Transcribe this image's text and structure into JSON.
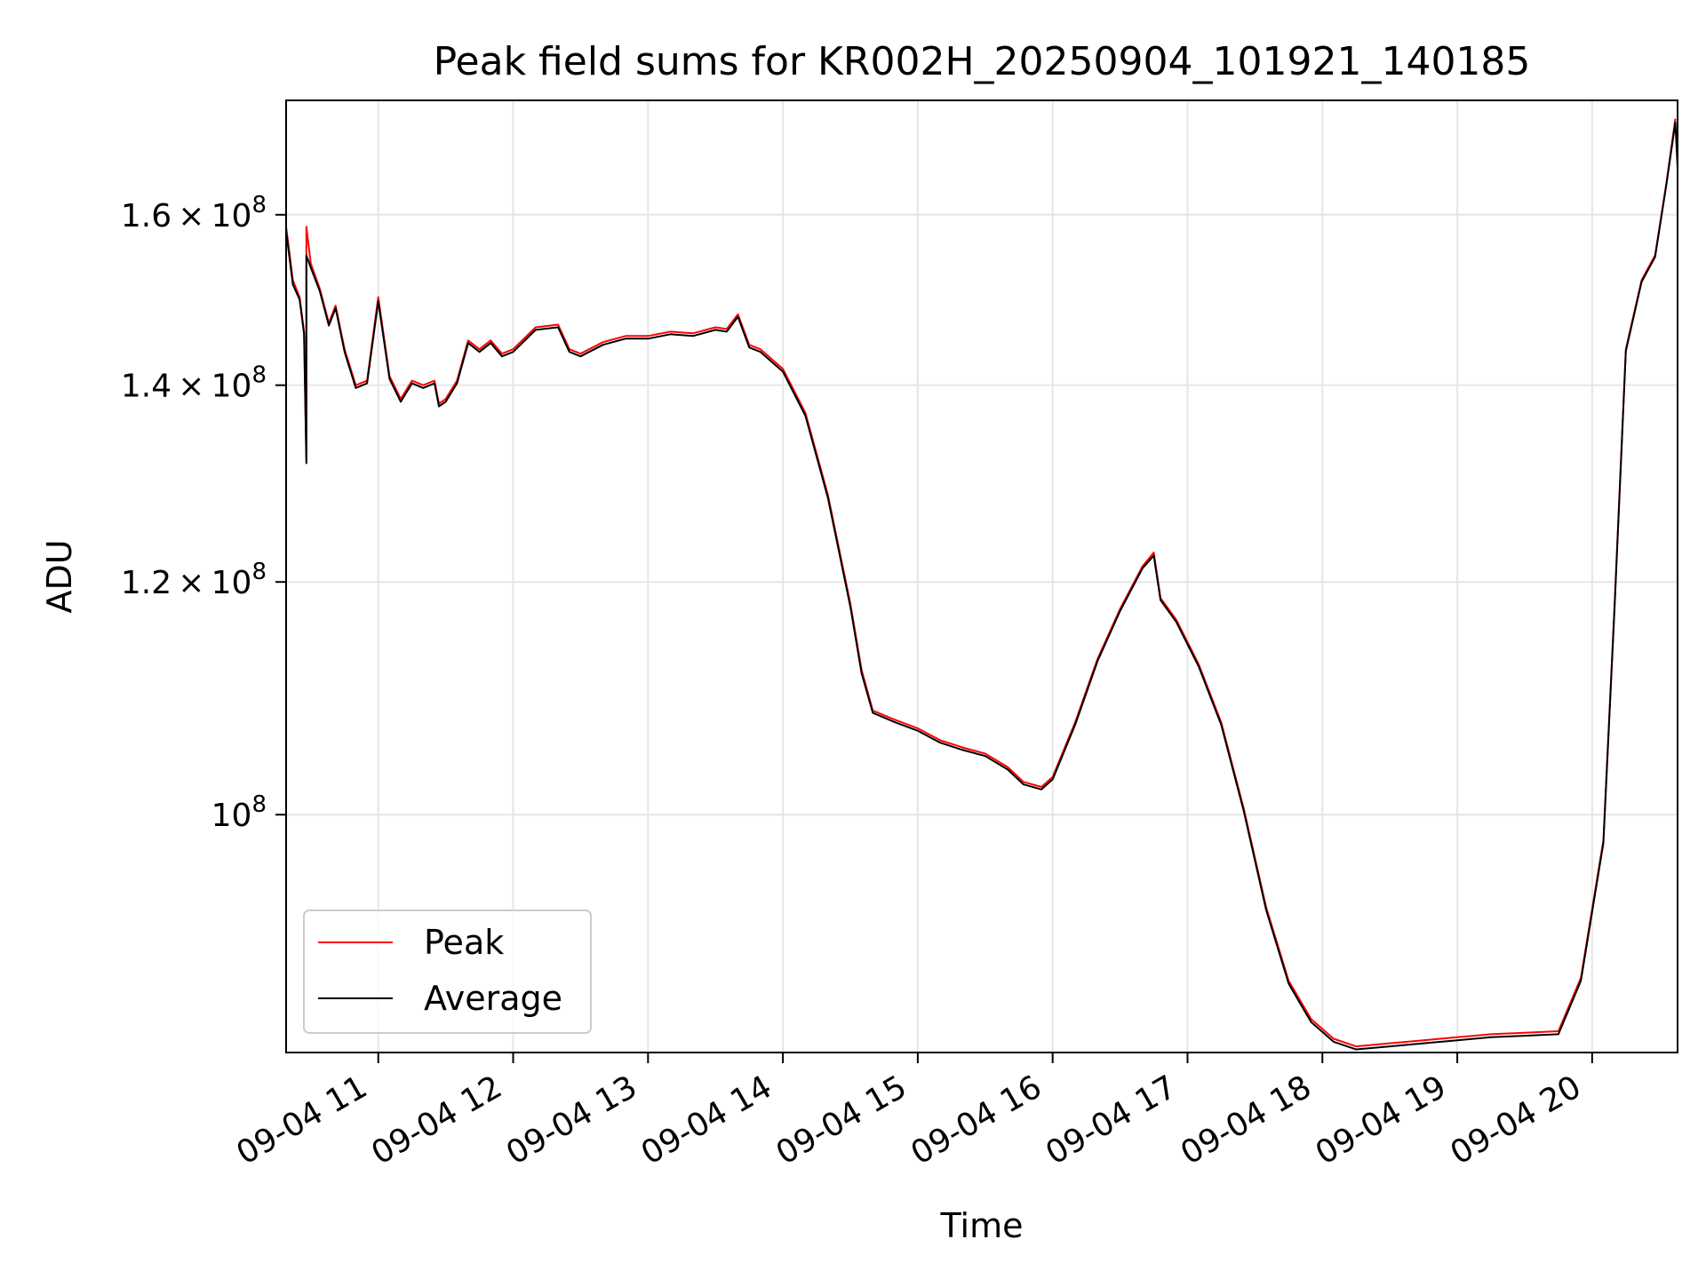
{
  "chart_data": {
    "type": "line",
    "title": "Peak field sums for KR002H_20250904_101921_140185",
    "xlabel": "Time",
    "ylabel": "ADU",
    "y_scale": "log",
    "grid": true,
    "legend_position": "lower-left",
    "x_tick_labels": [
      "09-04 11",
      "09-04 12",
      "09-04 13",
      "09-04 14",
      "09-04 15",
      "09-04 16",
      "09-04 17",
      "09-04 18",
      "09-04 19",
      "09-04 20"
    ],
    "y_ticks": [
      {
        "value": 160000000,
        "mantissa": "1.6",
        "times": "×",
        "base": "10",
        "exp": "8"
      },
      {
        "value": 140000000,
        "mantissa": "1.4",
        "times": "×",
        "base": "10",
        "exp": "8"
      },
      {
        "value": 120000000,
        "mantissa": "1.2",
        "times": "×",
        "base": "10",
        "exp": "8"
      },
      {
        "value": 100000000,
        "mantissa": "",
        "times": "",
        "base": "10",
        "exp": "8"
      }
    ],
    "xlim": [
      "09-04 10:19",
      "09-04 20:38"
    ],
    "ylim": [
      83000000,
      175000000
    ],
    "series": [
      {
        "name": "Peak",
        "color": "#ff0000",
        "points": [
          [
            "09-04 10:19",
            158500000
          ],
          [
            "09-04 10:22",
            152000000
          ],
          [
            "09-04 10:25",
            150000000
          ],
          [
            "09-04 10:27",
            146000000
          ],
          [
            "09-04 10:28",
            132000000
          ],
          [
            "09-04 10:28",
            158500000
          ],
          [
            "09-04 10:30",
            154000000
          ],
          [
            "09-04 10:34",
            151000000
          ],
          [
            "09-04 10:38",
            147000000
          ],
          [
            "09-04 10:41",
            149000000
          ],
          [
            "09-04 10:45",
            144000000
          ],
          [
            "09-04 10:50",
            140000000
          ],
          [
            "09-04 10:55",
            140500000
          ],
          [
            "09-04 11:00",
            150000000
          ],
          [
            "09-04 11:05",
            141000000
          ],
          [
            "09-04 11:10",
            138500000
          ],
          [
            "09-04 11:15",
            140500000
          ],
          [
            "09-04 11:20",
            140000000
          ],
          [
            "09-04 11:25",
            140500000
          ],
          [
            "09-04 11:27",
            138000000
          ],
          [
            "09-04 11:30",
            138500000
          ],
          [
            "09-04 11:35",
            140500000
          ],
          [
            "09-04 11:40",
            145000000
          ],
          [
            "09-04 11:45",
            144000000
          ],
          [
            "09-04 11:50",
            145000000
          ],
          [
            "09-04 11:55",
            143500000
          ],
          [
            "09-04 12:00",
            144000000
          ],
          [
            "09-04 12:10",
            146500000
          ],
          [
            "09-04 12:20",
            146800000
          ],
          [
            "09-04 12:25",
            144000000
          ],
          [
            "09-04 12:30",
            143500000
          ],
          [
            "09-04 12:40",
            144800000
          ],
          [
            "09-04 12:50",
            145500000
          ],
          [
            "09-04 13:00",
            145500000
          ],
          [
            "09-04 13:10",
            146000000
          ],
          [
            "09-04 13:20",
            145800000
          ],
          [
            "09-04 13:30",
            146500000
          ],
          [
            "09-04 13:35",
            146300000
          ],
          [
            "09-04 13:40",
            148000000
          ],
          [
            "09-04 13:45",
            144500000
          ],
          [
            "09-04 13:50",
            144000000
          ],
          [
            "09-04 14:00",
            141800000
          ],
          [
            "09-04 14:10",
            137000000
          ],
          [
            "09-04 14:20",
            128500000
          ],
          [
            "09-04 14:30",
            118000000
          ],
          [
            "09-04 14:35",
            112000000
          ],
          [
            "09-04 14:40",
            108500000
          ],
          [
            "09-04 14:50",
            107700000
          ],
          [
            "09-04 15:00",
            107000000
          ],
          [
            "09-04 15:10",
            106000000
          ],
          [
            "09-04 15:20",
            105400000
          ],
          [
            "09-04 15:30",
            104900000
          ],
          [
            "09-04 15:40",
            103800000
          ],
          [
            "09-04 15:47",
            102600000
          ],
          [
            "09-04 15:55",
            102200000
          ],
          [
            "09-04 16:00",
            103000000
          ],
          [
            "09-04 16:10",
            107500000
          ],
          [
            "09-04 16:20",
            113000000
          ],
          [
            "09-04 16:30",
            117500000
          ],
          [
            "09-04 16:40",
            121500000
          ],
          [
            "09-04 16:45",
            122800000
          ],
          [
            "09-04 16:48",
            118500000
          ],
          [
            "09-04 16:55",
            116500000
          ],
          [
            "09-04 17:05",
            112500000
          ],
          [
            "09-04 17:15",
            107500000
          ],
          [
            "09-04 17:25",
            100500000
          ],
          [
            "09-04 17:35",
            93000000
          ],
          [
            "09-04 17:45",
            87800000
          ],
          [
            "09-04 17:55",
            85200000
          ],
          [
            "09-04 18:05",
            83900000
          ],
          [
            "09-04 18:15",
            83400000
          ],
          [
            "09-04 18:30",
            83600000
          ],
          [
            "09-04 18:45",
            83800000
          ],
          [
            "09-04 19:00",
            84000000
          ],
          [
            "09-04 19:15",
            84200000
          ],
          [
            "09-04 19:30",
            84300000
          ],
          [
            "09-04 19:45",
            84400000
          ],
          [
            "09-04 19:55",
            88000000
          ],
          [
            "09-04 20:05",
            98000000
          ],
          [
            "09-04 20:10",
            118000000
          ],
          [
            "09-04 20:15",
            144000000
          ],
          [
            "09-04 20:22",
            152000000
          ],
          [
            "09-04 20:28",
            155000000
          ],
          [
            "09-04 20:33",
            164000000
          ],
          [
            "09-04 20:37",
            172500000
          ]
        ]
      },
      {
        "name": "Average",
        "color": "#000000",
        "points": [
          [
            "09-04 10:19",
            158000000
          ],
          [
            "09-04 10:22",
            151500000
          ],
          [
            "09-04 10:25",
            149700000
          ],
          [
            "09-04 10:27",
            145700000
          ],
          [
            "09-04 10:28",
            131700000
          ],
          [
            "09-04 10:28",
            155000000
          ],
          [
            "09-04 10:30",
            153500000
          ],
          [
            "09-04 10:34",
            150700000
          ],
          [
            "09-04 10:38",
            146700000
          ],
          [
            "09-04 10:41",
            148700000
          ],
          [
            "09-04 10:45",
            143700000
          ],
          [
            "09-04 10:50",
            139700000
          ],
          [
            "09-04 10:55",
            140200000
          ],
          [
            "09-04 11:00",
            149500000
          ],
          [
            "09-04 11:05",
            140700000
          ],
          [
            "09-04 11:10",
            138200000
          ],
          [
            "09-04 11:15",
            140200000
          ],
          [
            "09-04 11:20",
            139700000
          ],
          [
            "09-04 11:25",
            140200000
          ],
          [
            "09-04 11:27",
            137700000
          ],
          [
            "09-04 11:30",
            138200000
          ],
          [
            "09-04 11:35",
            140200000
          ],
          [
            "09-04 11:40",
            144700000
          ],
          [
            "09-04 11:45",
            143700000
          ],
          [
            "09-04 11:50",
            144700000
          ],
          [
            "09-04 11:55",
            143200000
          ],
          [
            "09-04 12:00",
            143700000
          ],
          [
            "09-04 12:10",
            146200000
          ],
          [
            "09-04 12:20",
            146500000
          ],
          [
            "09-04 12:25",
            143700000
          ],
          [
            "09-04 12:30",
            143200000
          ],
          [
            "09-04 12:40",
            144500000
          ],
          [
            "09-04 12:50",
            145200000
          ],
          [
            "09-04 13:00",
            145200000
          ],
          [
            "09-04 13:10",
            145700000
          ],
          [
            "09-04 13:20",
            145500000
          ],
          [
            "09-04 13:30",
            146200000
          ],
          [
            "09-04 13:35",
            146000000
          ],
          [
            "09-04 13:40",
            147700000
          ],
          [
            "09-04 13:45",
            144200000
          ],
          [
            "09-04 13:50",
            143700000
          ],
          [
            "09-04 14:00",
            141500000
          ],
          [
            "09-04 14:10",
            136700000
          ],
          [
            "09-04 14:20",
            128200000
          ],
          [
            "09-04 14:30",
            117700000
          ],
          [
            "09-04 14:35",
            111700000
          ],
          [
            "09-04 14:40",
            108300000
          ],
          [
            "09-04 14:50",
            107500000
          ],
          [
            "09-04 15:00",
            106800000
          ],
          [
            "09-04 15:10",
            105800000
          ],
          [
            "09-04 15:20",
            105200000
          ],
          [
            "09-04 15:30",
            104700000
          ],
          [
            "09-04 15:40",
            103600000
          ],
          [
            "09-04 15:47",
            102400000
          ],
          [
            "09-04 15:55",
            102000000
          ],
          [
            "09-04 16:00",
            102800000
          ],
          [
            "09-04 16:10",
            107300000
          ],
          [
            "09-04 16:20",
            112800000
          ],
          [
            "09-04 16:30",
            117300000
          ],
          [
            "09-04 16:40",
            121300000
          ],
          [
            "09-04 16:45",
            122500000
          ],
          [
            "09-04 16:48",
            118300000
          ],
          [
            "09-04 16:55",
            116300000
          ],
          [
            "09-04 17:05",
            112300000
          ],
          [
            "09-04 17:15",
            107300000
          ],
          [
            "09-04 17:25",
            100300000
          ],
          [
            "09-04 17:35",
            92800000
          ],
          [
            "09-04 17:45",
            87600000
          ],
          [
            "09-04 17:55",
            85000000
          ],
          [
            "09-04 18:05",
            83700000
          ],
          [
            "09-04 18:15",
            83200000
          ],
          [
            "09-04 18:30",
            83400000
          ],
          [
            "09-04 18:45",
            83600000
          ],
          [
            "09-04 19:00",
            83800000
          ],
          [
            "09-04 19:15",
            84000000
          ],
          [
            "09-04 19:30",
            84100000
          ],
          [
            "09-04 19:45",
            84200000
          ],
          [
            "09-04 19:55",
            87800000
          ],
          [
            "09-04 20:05",
            97800000
          ],
          [
            "09-04 20:10",
            117800000
          ],
          [
            "09-04 20:15",
            143800000
          ],
          [
            "09-04 20:22",
            151800000
          ],
          [
            "09-04 20:28",
            154800000
          ],
          [
            "09-04 20:33",
            163800000
          ],
          [
            "09-04 20:37",
            172000000
          ],
          [
            "09-04 20:38",
            166000000
          ]
        ]
      }
    ]
  }
}
